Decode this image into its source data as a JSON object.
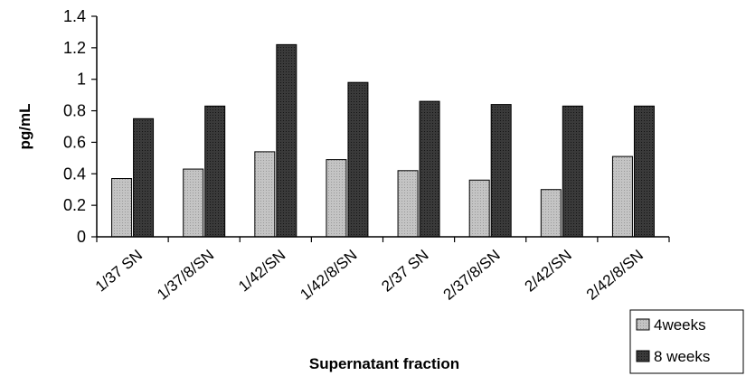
{
  "chart_data": {
    "type": "bar",
    "title": "",
    "xlabel": "Supernatant fraction",
    "ylabel": "pg/mL",
    "ylim": [
      0,
      1.4
    ],
    "yticks": [
      "0",
      "0.2",
      "0.4",
      "0.6",
      "0.8",
      "1",
      "1.2",
      "1.4"
    ],
    "grid": false,
    "legend_position": "bottom-right",
    "categories": [
      "1/37 SN",
      "1/37/8/SN",
      "1/42/SN",
      "1/42/8/SN",
      "2/37 SN",
      "2/37/8/SN",
      "2/42/SN",
      "2/42/8/SN"
    ],
    "series": [
      {
        "name": "4weeks",
        "values": [
          0.37,
          0.43,
          0.54,
          0.49,
          0.42,
          0.36,
          0.3,
          0.51
        ],
        "color": "#b5b5b5"
      },
      {
        "name": "8 weeks",
        "values": [
          0.75,
          0.83,
          1.22,
          0.98,
          0.86,
          0.84,
          0.83,
          0.83
        ],
        "color": "#2e2e2e"
      }
    ]
  }
}
